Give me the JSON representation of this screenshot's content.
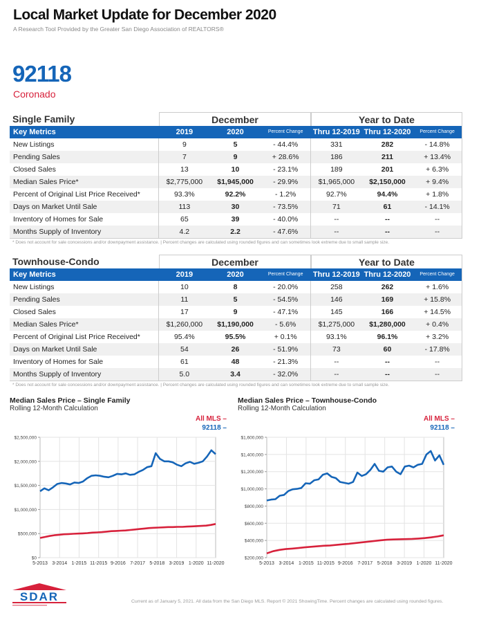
{
  "header": {
    "title": "Local Market Update for December 2020",
    "subtitle": "A Research Tool Provided by the Greater San Diego Association of REALTORS®",
    "zip": "92118",
    "area": "Coronado"
  },
  "colors": {
    "brand_blue": "#1565b8",
    "accent_red": "#d7213b"
  },
  "tables": [
    {
      "section": "Single Family",
      "group_month": "December",
      "group_ytd": "Year to Date",
      "columns": [
        "Key Metrics",
        "2019",
        "2020",
        "Percent Change",
        "Thru 12-2019",
        "Thru 12-2020",
        "Percent Change"
      ],
      "rows": [
        [
          "New Listings",
          "9",
          "5",
          "- 44.4%",
          "331",
          "282",
          "- 14.8%"
        ],
        [
          "Pending Sales",
          "7",
          "9",
          "+ 28.6%",
          "186",
          "211",
          "+ 13.4%"
        ],
        [
          "Closed Sales",
          "13",
          "10",
          "- 23.1%",
          "189",
          "201",
          "+ 6.3%"
        ],
        [
          "Median Sales Price*",
          "$2,775,000",
          "$1,945,000",
          "- 29.9%",
          "$1,965,000",
          "$2,150,000",
          "+ 9.4%"
        ],
        [
          "Percent of Original List Price Received*",
          "93.3%",
          "92.2%",
          "- 1.2%",
          "92.7%",
          "94.4%",
          "+ 1.8%"
        ],
        [
          "Days on Market Until Sale",
          "113",
          "30",
          "- 73.5%",
          "71",
          "61",
          "- 14.1%"
        ],
        [
          "Inventory of Homes for Sale",
          "65",
          "39",
          "- 40.0%",
          "--",
          "--",
          "--"
        ],
        [
          "Months Supply of Inventory",
          "4.2",
          "2.2",
          "- 47.6%",
          "--",
          "--",
          "--"
        ]
      ],
      "footnote": "* Does not account for sale concessions and/or downpayment assistance.  |  Percent changes are calculated using rounded figures and can sometimes look extreme due to small sample size."
    },
    {
      "section": "Townhouse-Condo",
      "group_month": "December",
      "group_ytd": "Year to Date",
      "columns": [
        "Key Metrics",
        "2019",
        "2020",
        "Percent Change",
        "Thru 12-2019",
        "Thru 12-2020",
        "Percent Change"
      ],
      "rows": [
        [
          "New Listings",
          "10",
          "8",
          "- 20.0%",
          "258",
          "262",
          "+ 1.6%"
        ],
        [
          "Pending Sales",
          "11",
          "5",
          "- 54.5%",
          "146",
          "169",
          "+ 15.8%"
        ],
        [
          "Closed Sales",
          "17",
          "9",
          "- 47.1%",
          "145",
          "166",
          "+ 14.5%"
        ],
        [
          "Median Sales Price*",
          "$1,260,000",
          "$1,190,000",
          "- 5.6%",
          "$1,275,000",
          "$1,280,000",
          "+ 0.4%"
        ],
        [
          "Percent of Original List Price Received*",
          "95.4%",
          "95.5%",
          "+ 0.1%",
          "93.1%",
          "96.1%",
          "+ 3.2%"
        ],
        [
          "Days on Market Until Sale",
          "54",
          "26",
          "- 51.9%",
          "73",
          "60",
          "- 17.8%"
        ],
        [
          "Inventory of Homes for Sale",
          "61",
          "48",
          "- 21.3%",
          "--",
          "--",
          "--"
        ],
        [
          "Months Supply of Inventory",
          "5.0",
          "3.4",
          "- 32.0%",
          "--",
          "--",
          "--"
        ]
      ],
      "footnote": "* Does not account for sale concessions and/or downpayment assistance.  |  Percent changes are calculated using rounded figures and can sometimes look extreme due to small sample size."
    }
  ],
  "chart_data": [
    {
      "type": "line",
      "title": "Median Sales Price – Single Family",
      "subtitle": "Rolling 12-Month Calculation",
      "legend": [
        "All MLS –",
        "92118 –"
      ],
      "legend_position": "top-right",
      "ylim": [
        0,
        2500000
      ],
      "yticks": [
        0,
        500000,
        1000000,
        1500000,
        2000000,
        2500000
      ],
      "ytick_labels": [
        "$0",
        "$500,000",
        "$1,000,000",
        "$1,500,000",
        "$2,000,000",
        "$2,500,000"
      ],
      "xtick_labels": [
        "5-2013",
        "3-2014",
        "1-2015",
        "11-2015",
        "9-2016",
        "7-2017",
        "5-2018",
        "3-2019",
        "1-2020",
        "11-2020"
      ],
      "grid": true,
      "series": [
        {
          "name": "All MLS",
          "color": "#d7213b",
          "values": [
            410000,
            430000,
            450000,
            465000,
            475000,
            485000,
            490000,
            495000,
            500000,
            505000,
            510000,
            520000,
            525000,
            530000,
            540000,
            550000,
            555000,
            560000,
            565000,
            575000,
            585000,
            595000,
            605000,
            615000,
            620000,
            625000,
            630000,
            635000,
            635000,
            640000,
            640000,
            645000,
            650000,
            655000,
            660000,
            665000,
            680000,
            700000
          ]
        },
        {
          "name": "92118",
          "color": "#1565b8",
          "values": [
            1380000,
            1440000,
            1400000,
            1460000,
            1530000,
            1550000,
            1540000,
            1520000,
            1560000,
            1550000,
            1580000,
            1650000,
            1700000,
            1710000,
            1700000,
            1680000,
            1670000,
            1700000,
            1740000,
            1730000,
            1750000,
            1720000,
            1730000,
            1780000,
            1820000,
            1880000,
            1900000,
            2170000,
            2050000,
            2000000,
            2000000,
            1980000,
            1930000,
            1900000,
            1960000,
            1990000,
            1950000,
            1970000,
            2000000,
            2100000,
            2230000,
            2150000
          ]
        }
      ]
    },
    {
      "type": "line",
      "title": "Median Sales Price – Townhouse-Condo",
      "subtitle": "Rolling 12-Month Calculation",
      "legend": [
        "All MLS –",
        "92118 –"
      ],
      "legend_position": "top-right",
      "ylim": [
        200000,
        1600000
      ],
      "yticks": [
        200000,
        400000,
        600000,
        800000,
        1000000,
        1200000,
        1400000,
        1600000
      ],
      "ytick_labels": [
        "$200,000",
        "$400,000",
        "$600,000",
        "$800,000",
        "$1,000,000",
        "$1,200,000",
        "$1,400,000",
        "$1,600,000"
      ],
      "xtick_labels": [
        "5-2013",
        "3-2014",
        "1-2015",
        "11-2015",
        "9-2016",
        "7-2017",
        "5-2018",
        "3-2019",
        "1-2020",
        "11-2020"
      ],
      "grid": true,
      "series": [
        {
          "name": "All MLS",
          "color": "#d7213b",
          "values": [
            250000,
            275000,
            290000,
            300000,
            305000,
            312000,
            320000,
            326000,
            332000,
            338000,
            342000,
            348000,
            355000,
            362000,
            370000,
            378000,
            386000,
            394000,
            402000,
            408000,
            412000,
            414000,
            416000,
            418000,
            422000,
            428000,
            436000,
            446000,
            460000
          ]
        },
        {
          "name": "92118",
          "color": "#1565b8",
          "values": [
            865000,
            875000,
            880000,
            920000,
            930000,
            975000,
            995000,
            1000000,
            1010000,
            1065000,
            1060000,
            1100000,
            1110000,
            1165000,
            1180000,
            1140000,
            1125000,
            1080000,
            1070000,
            1060000,
            1080000,
            1190000,
            1150000,
            1170000,
            1220000,
            1290000,
            1210000,
            1200000,
            1250000,
            1260000,
            1200000,
            1170000,
            1260000,
            1270000,
            1250000,
            1280000,
            1290000,
            1400000,
            1440000,
            1330000,
            1390000,
            1280000
          ]
        }
      ]
    }
  ],
  "footer": {
    "logo_text": "SDAR",
    "note": "Current as of January 5, 2021. All data from the San Diego MLS. Report © 2021 ShowingTime. Percent changes are calculated using rounded figures."
  }
}
